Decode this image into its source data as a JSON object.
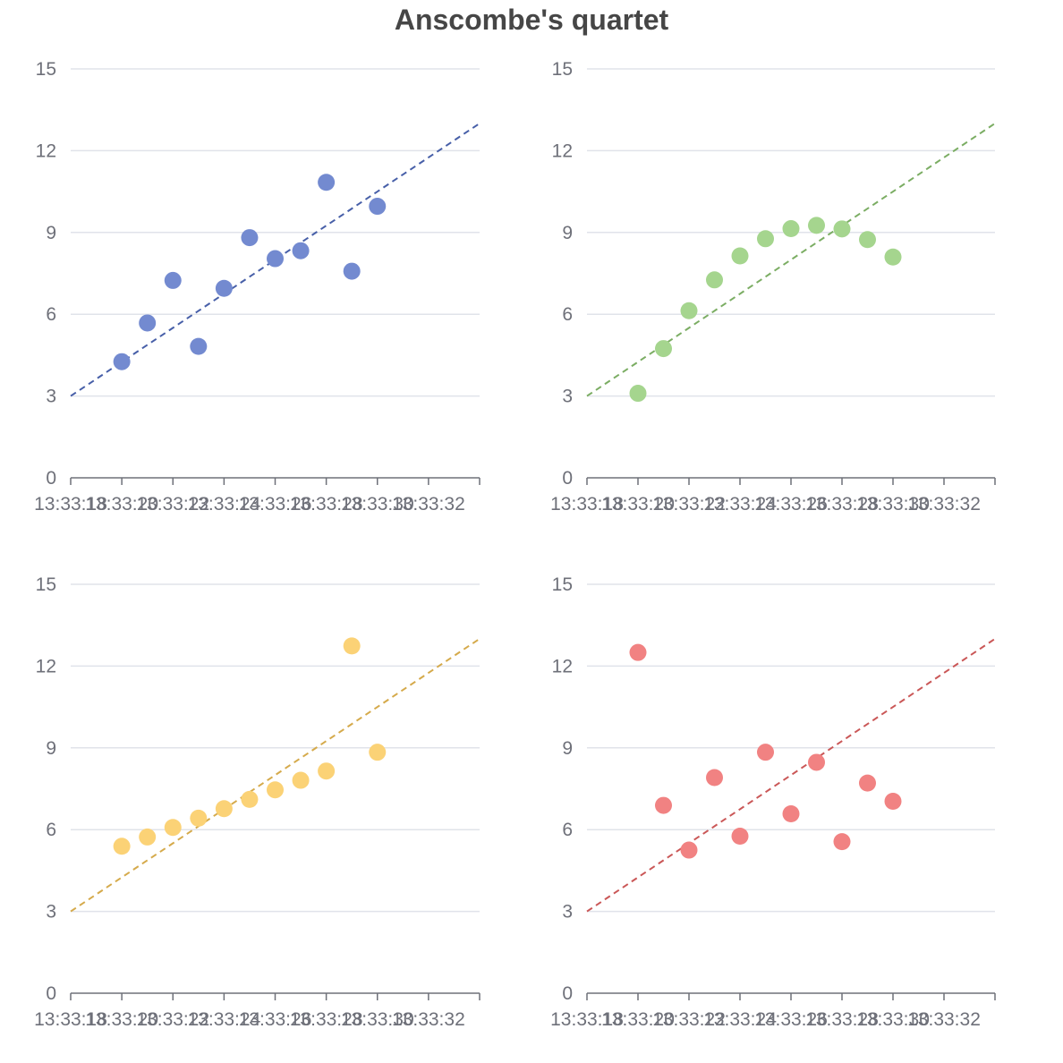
{
  "title": "Anscombe's quartet",
  "chart_data": [
    {
      "type": "scatter",
      "x_axis": {
        "type": "time",
        "ticks": [
          "13:33:18",
          "13:33:20",
          "13:33:22",
          "13:33:24",
          "13:33:26",
          "13:33:28",
          "13:33:30",
          "13:33:32"
        ],
        "range": [
          2,
          18
        ]
      },
      "y_axis": {
        "ticks": [
          "0",
          "3",
          "6",
          "9",
          "12",
          "15"
        ],
        "ylim": [
          0,
          15
        ]
      },
      "grid": true,
      "series": [
        {
          "color": "#5470c6",
          "x": [
            10,
            8,
            13,
            9,
            11,
            14,
            6,
            4,
            12,
            7,
            5
          ],
          "y": [
            8.04,
            6.95,
            7.58,
            8.81,
            8.33,
            9.96,
            7.24,
            4.26,
            10.84,
            4.82,
            5.68
          ]
        }
      ],
      "trend_line": {
        "style": "dashed",
        "color": "#5470c6",
        "from": [
          2,
          3
        ],
        "to": [
          18,
          13
        ]
      }
    },
    {
      "type": "scatter",
      "x_axis": {
        "type": "time",
        "ticks": [
          "13:33:18",
          "13:33:20",
          "13:33:22",
          "13:33:24",
          "13:33:26",
          "13:33:28",
          "13:33:30",
          "13:33:32"
        ],
        "range": [
          2,
          18
        ]
      },
      "y_axis": {
        "ticks": [
          "0",
          "3",
          "6",
          "9",
          "12",
          "15"
        ],
        "ylim": [
          0,
          15
        ]
      },
      "grid": true,
      "series": [
        {
          "color": "#91cc75",
          "x": [
            10,
            8,
            13,
            9,
            11,
            14,
            6,
            4,
            12,
            7,
            5
          ],
          "y": [
            9.14,
            8.14,
            8.74,
            8.77,
            9.26,
            8.1,
            6.13,
            3.1,
            9.13,
            7.26,
            4.74
          ]
        }
      ],
      "trend_line": {
        "style": "dashed",
        "color": "#91cc75",
        "from": [
          2,
          3
        ],
        "to": [
          18,
          13
        ]
      }
    },
    {
      "type": "scatter",
      "x_axis": {
        "type": "time",
        "ticks": [
          "13:33:18",
          "13:33:20",
          "13:33:22",
          "13:33:24",
          "13:33:26",
          "13:33:28",
          "13:33:30",
          "13:33:32"
        ],
        "range": [
          2,
          18
        ]
      },
      "y_axis": {
        "ticks": [
          "0",
          "3",
          "6",
          "9",
          "12",
          "15"
        ],
        "ylim": [
          0,
          15
        ]
      },
      "grid": true,
      "series": [
        {
          "color": "#fac858",
          "x": [
            10,
            8,
            13,
            9,
            11,
            14,
            6,
            4,
            12,
            7,
            5
          ],
          "y": [
            7.46,
            6.77,
            12.74,
            7.11,
            7.81,
            8.84,
            6.08,
            5.39,
            8.15,
            6.42,
            5.73
          ]
        }
      ],
      "trend_line": {
        "style": "dashed",
        "color": "#fac858",
        "from": [
          2,
          3
        ],
        "to": [
          18,
          13
        ]
      }
    },
    {
      "type": "scatter",
      "x_axis": {
        "type": "time",
        "ticks": [
          "13:33:18",
          "13:33:20",
          "13:33:22",
          "13:33:24",
          "13:33:26",
          "13:33:28",
          "13:33:30",
          "13:33:32"
        ],
        "range": [
          2,
          18
        ]
      },
      "y_axis": {
        "ticks": [
          "0",
          "3",
          "6",
          "9",
          "12",
          "15"
        ],
        "ylim": [
          0,
          15
        ]
      },
      "grid": true,
      "series": [
        {
          "color": "#ee6666",
          "x": [
            10,
            8,
            13,
            9,
            11,
            14,
            6,
            4,
            12,
            7,
            5
          ],
          "y": [
            6.58,
            5.76,
            7.71,
            8.84,
            8.47,
            7.04,
            5.25,
            12.5,
            5.56,
            7.91,
            6.89
          ]
        }
      ],
      "trend_line": {
        "style": "dashed",
        "color": "#ee6666",
        "from": [
          2,
          3
        ],
        "to": [
          18,
          13
        ]
      }
    }
  ]
}
